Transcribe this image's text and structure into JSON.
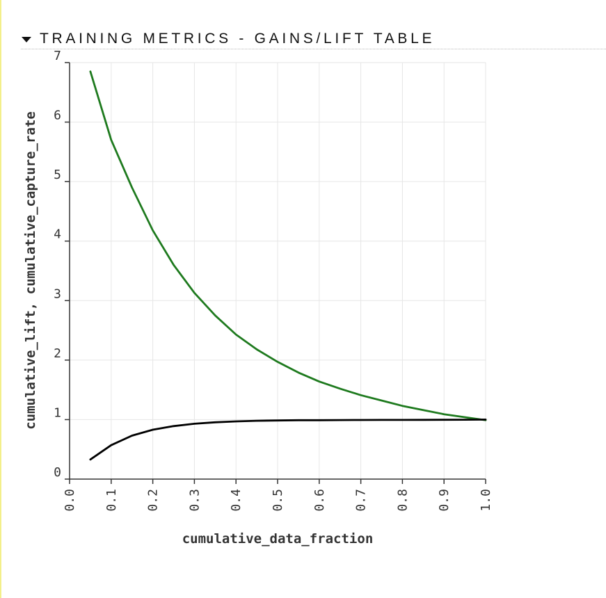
{
  "section": {
    "title": "TRAINING METRICS - GAINS/LIFT TABLE",
    "toggle_icon": "triangle-down-icon"
  },
  "colors": {
    "lift": "#1e7a1e",
    "capture_rate": "#000000",
    "grid": "#e6e6e6",
    "axis": "#333333"
  },
  "chart_data": {
    "type": "line",
    "xlabel": "cumulative_data_fraction",
    "ylabel": "cumulative_lift, cumulative_capture_rate",
    "xlim": [
      0,
      1
    ],
    "ylim": [
      0,
      7
    ],
    "xticks": [
      "0.0",
      "0.1",
      "0.2",
      "0.3",
      "0.4",
      "0.5",
      "0.6",
      "0.7",
      "0.8",
      "0.9",
      "1.0"
    ],
    "yticks": [
      "0",
      "1",
      "2",
      "3",
      "4",
      "5",
      "6",
      "7"
    ],
    "grid": true,
    "x": [
      0.05,
      0.1,
      0.15,
      0.2,
      0.25,
      0.3,
      0.35,
      0.4,
      0.45,
      0.5,
      0.55,
      0.6,
      0.65,
      0.7,
      0.75,
      0.8,
      0.85,
      0.9,
      0.95,
      1.0
    ],
    "series": [
      {
        "values": [
          6.85,
          5.7,
          4.9,
          4.18,
          3.6,
          3.13,
          2.75,
          2.43,
          2.18,
          1.97,
          1.79,
          1.64,
          1.52,
          1.41,
          1.32,
          1.23,
          1.16,
          1.09,
          1.04,
          0.99
        ]
      },
      {
        "values": [
          0.33,
          0.57,
          0.73,
          0.83,
          0.89,
          0.93,
          0.955,
          0.97,
          0.98,
          0.985,
          0.99,
          0.99,
          0.992,
          0.993,
          0.994,
          0.995,
          0.996,
          0.997,
          0.998,
          1.0
        ]
      }
    ]
  }
}
